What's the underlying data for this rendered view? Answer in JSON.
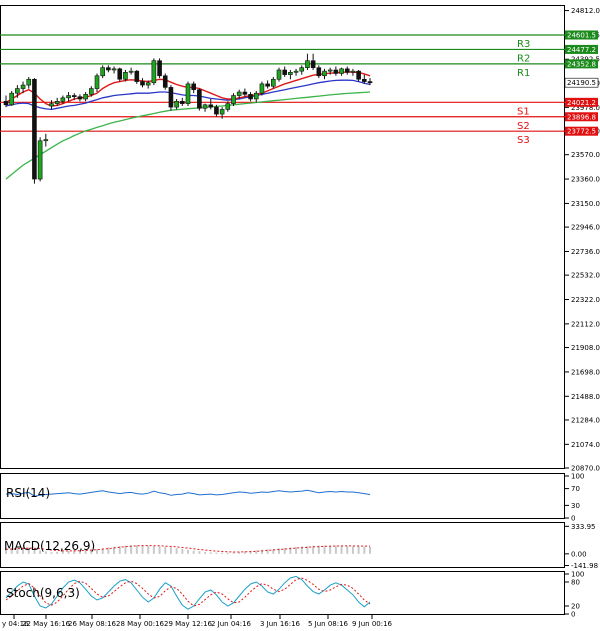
{
  "chart_data": [
    {
      "type": "candlestick",
      "title": "",
      "ylim": [
        20870,
        24860
      ],
      "y_ticks": [
        "24812.0",
        "24602.5",
        "24392.5",
        "24186.0",
        "23978.0",
        "23774.0",
        "23570.0",
        "23360.0",
        "23150.0",
        "22946.0",
        "22736.0",
        "22532.0",
        "22322.0",
        "22112.0",
        "21908.0",
        "21698.0",
        "21488.0",
        "21284.0",
        "21074.0",
        "20870.0"
      ],
      "x_ticks": [
        "y 04:16",
        "22 May 16:16",
        "26 May 08:16",
        "28 May 00:16",
        "29 May 12:16",
        "2 Jun 04:16",
        "3 Jun 16:16",
        "5 Jun 08:16",
        "9 Jun 00:16"
      ],
      "current_price": "24190.5",
      "levels": [
        {
          "name": "R3",
          "value": 24601.5,
          "label": "24601.5",
          "color": "#1a8a1a"
        },
        {
          "name": "R2",
          "value": 24477.2,
          "label": "24477.2",
          "color": "#1a8a1a"
        },
        {
          "name": "R1",
          "value": 24352.8,
          "label": "24352.8",
          "color": "#1a8a1a"
        },
        {
          "name": "S1",
          "value": 24021.2,
          "label": "24021.2",
          "color": "#e01010"
        },
        {
          "name": "S2",
          "value": 23896.8,
          "label": "23896.8",
          "color": "#e01010"
        },
        {
          "name": "S3",
          "value": 23772.5,
          "label": "23772.5",
          "color": "#e01010"
        }
      ],
      "candles": [
        [
          24030,
          24080,
          23980,
          24000
        ],
        [
          24000,
          24120,
          23990,
          24100
        ],
        [
          24100,
          24170,
          24060,
          24140
        ],
        [
          24140,
          24200,
          24100,
          24170
        ],
        [
          24170,
          24240,
          24140,
          24220
        ],
        [
          24220,
          24230,
          23320,
          23360
        ],
        [
          23360,
          23720,
          23340,
          23690
        ],
        [
          23690,
          23750,
          23640,
          23700
        ],
        [
          23990,
          24040,
          23960,
          24010
        ],
        [
          24010,
          24060,
          23990,
          24030
        ],
        [
          24030,
          24080,
          24010,
          24060
        ],
        [
          24060,
          24110,
          24030,
          24080
        ],
        [
          24080,
          24100,
          24040,
          24070
        ],
        [
          24070,
          24090,
          24030,
          24050
        ],
        [
          24050,
          24110,
          24030,
          24090
        ],
        [
          24090,
          24160,
          24070,
          24140
        ],
        [
          24140,
          24270,
          24110,
          24250
        ],
        [
          24250,
          24340,
          24230,
          24320
        ],
        [
          24320,
          24340,
          24280,
          24300
        ],
        [
          24300,
          24330,
          24270,
          24310
        ],
        [
          24310,
          24320,
          24200,
          24220
        ],
        [
          24220,
          24300,
          24200,
          24280
        ],
        [
          24280,
          24320,
          24260,
          24290
        ],
        [
          24290,
          24300,
          24180,
          24200
        ],
        [
          24200,
          24230,
          24150,
          24170
        ],
        [
          24170,
          24210,
          24140,
          24190
        ],
        [
          24190,
          24400,
          24170,
          24380
        ],
        [
          24380,
          24400,
          24230,
          24250
        ],
        [
          24250,
          24270,
          24130,
          24150
        ],
        [
          24150,
          24170,
          23950,
          23980
        ],
        [
          23980,
          24050,
          23960,
          24030
        ],
        [
          24030,
          24060,
          23990,
          24010
        ],
        [
          24010,
          24200,
          23990,
          24180
        ],
        [
          24180,
          24200,
          24100,
          24130
        ],
        [
          24130,
          24140,
          23950,
          23970
        ],
        [
          23970,
          24010,
          23940,
          24000
        ],
        [
          24000,
          24050,
          23960,
          23980
        ],
        [
          23980,
          24000,
          23900,
          23920
        ],
        [
          23920,
          23980,
          23880,
          23960
        ],
        [
          23960,
          24030,
          23940,
          24010
        ],
        [
          24010,
          24100,
          23990,
          24080
        ],
        [
          24080,
          24130,
          24050,
          24110
        ],
        [
          24110,
          24140,
          24070,
          24090
        ],
        [
          24090,
          24110,
          24030,
          24050
        ],
        [
          24050,
          24120,
          24020,
          24100
        ],
        [
          24100,
          24200,
          24080,
          24180
        ],
        [
          24180,
          24210,
          24140,
          24160
        ],
        [
          24160,
          24240,
          24140,
          24220
        ],
        [
          24220,
          24320,
          24200,
          24300
        ],
        [
          24300,
          24330,
          24240,
          24260
        ],
        [
          24260,
          24300,
          24220,
          24280
        ],
        [
          24280,
          24310,
          24250,
          24290
        ],
        [
          24290,
          24340,
          24260,
          24320
        ],
        [
          24320,
          24440,
          24300,
          24380
        ],
        [
          24380,
          24440,
          24300,
          24320
        ],
        [
          24320,
          24340,
          24230,
          24250
        ],
        [
          24250,
          24310,
          24220,
          24290
        ],
        [
          24290,
          24320,
          24260,
          24300
        ],
        [
          24300,
          24330,
          24250,
          24270
        ],
        [
          24270,
          24320,
          24250,
          24310
        ],
        [
          24310,
          24330,
          24260,
          24280
        ],
        [
          24280,
          24310,
          24250,
          24290
        ],
        [
          24290,
          24300,
          24200,
          24220
        ],
        [
          24220,
          24260,
          24180,
          24200
        ],
        [
          24200,
          24230,
          24170,
          24190
        ]
      ],
      "ma_fast": [
        24020,
        24050,
        24080,
        24110,
        24130,
        24100,
        24050,
        24010,
        23990,
        23995,
        24010,
        24030,
        24050,
        24060,
        24065,
        24080,
        24100,
        24140,
        24170,
        24190,
        24200,
        24210,
        24215,
        24212,
        24205,
        24200,
        24210,
        24220,
        24215,
        24195,
        24175,
        24160,
        24150,
        24150,
        24140,
        24120,
        24100,
        24080,
        24060,
        24050,
        24050,
        24060,
        24070,
        24080,
        24085,
        24100,
        24120,
        24140,
        24160,
        24180,
        24195,
        24210,
        24225,
        24240,
        24255,
        24262,
        24268,
        24272,
        24276,
        24280,
        24282,
        24283,
        24278,
        24266,
        24250
      ],
      "ma_mid": [
        23990,
        24000,
        24010,
        24015,
        24010,
        23990,
        23975,
        23965,
        23960,
        23970,
        23980,
        23990,
        23995,
        24005,
        24015,
        24030,
        24045,
        24060,
        24070,
        24080,
        24085,
        24090,
        24095,
        24100,
        24100,
        24100,
        24105,
        24110,
        24110,
        24105,
        24095,
        24085,
        24080,
        24080,
        24075,
        24065,
        24055,
        24050,
        24045,
        24040,
        24045,
        24050,
        24060,
        24070,
        24080,
        24090,
        24100,
        24110,
        24120,
        24130,
        24140,
        24150,
        24160,
        24170,
        24180,
        24190,
        24198,
        24205,
        24210,
        24212,
        24212,
        24210,
        24200,
        24185,
        24175
      ],
      "ma_slow": [
        23360,
        23400,
        23440,
        23480,
        23510,
        23540,
        23570,
        23600,
        23630,
        23660,
        23690,
        23710,
        23735,
        23755,
        23775,
        23790,
        23805,
        23820,
        23835,
        23850,
        23860,
        23872,
        23884,
        23895,
        23905,
        23915,
        23925,
        23935,
        23945,
        23953,
        23958,
        23962,
        23966,
        23970,
        23974,
        23978,
        23982,
        23986,
        23990,
        23996,
        24000,
        24005,
        24010,
        24015,
        24020,
        24025,
        24030,
        24035,
        24040,
        24045,
        24050,
        24055,
        24060,
        24065,
        24070,
        24075,
        24080,
        24085,
        24090,
        24095,
        24098,
        24101,
        24104,
        24107,
        24110
      ]
    },
    {
      "type": "line",
      "title": "RSI(14)",
      "ylim": [
        0,
        100
      ],
      "y_ticks": [
        "100",
        "70",
        "30",
        "0"
      ],
      "values": [
        57,
        58,
        56,
        59,
        61,
        52,
        54,
        56,
        57,
        58,
        59,
        60,
        58,
        57,
        59,
        61,
        63,
        65,
        62,
        60,
        58,
        60,
        61,
        58,
        57,
        59,
        64,
        60,
        58,
        54,
        56,
        57,
        60,
        58,
        55,
        56,
        57,
        55,
        56,
        58,
        60,
        62,
        61,
        59,
        60,
        62,
        61,
        63,
        65,
        63,
        62,
        63,
        64,
        66,
        63,
        60,
        62,
        63,
        62,
        63,
        62,
        62,
        60,
        58,
        56
      ]
    },
    {
      "type": "line",
      "title": "MACD(12,26,9)",
      "y_ticks": [
        "333.95",
        "0.00",
        "-141.98"
      ],
      "ylim": [
        -160,
        350
      ],
      "histogram": [
        60,
        65,
        70,
        75,
        80,
        60,
        40,
        30,
        20,
        25,
        30,
        35,
        40,
        42,
        45,
        50,
        58,
        68,
        78,
        86,
        92,
        98,
        104,
        106,
        104,
        100,
        96,
        92,
        86,
        78,
        68,
        58,
        48,
        40,
        32,
        24,
        18,
        14,
        12,
        14,
        18,
        24,
        30,
        36,
        42,
        48,
        54,
        60,
        66,
        72,
        78,
        84,
        90,
        94,
        98,
        100,
        100,
        100,
        99,
        97,
        95,
        93,
        91,
        89,
        87
      ],
      "signal": [
        55,
        58,
        62,
        66,
        70,
        68,
        62,
        54,
        46,
        40,
        36,
        35,
        36,
        38,
        41,
        45,
        50,
        57,
        64,
        72,
        80,
        87,
        93,
        98,
        100,
        100,
        99,
        97,
        94,
        90,
        84,
        77,
        69,
        61,
        53,
        46,
        39,
        33,
        28,
        24,
        22,
        22,
        24,
        27,
        31,
        36,
        41,
        46,
        52,
        57,
        63,
        69,
        74,
        79,
        84,
        88,
        91,
        93,
        95,
        96,
        96,
        96,
        95,
        94,
        93
      ]
    },
    {
      "type": "line",
      "title": "Stoch(9,6,3)",
      "ylim": [
        0,
        100
      ],
      "y_ticks": [
        "100",
        "80",
        "20",
        "0"
      ],
      "main": [
        40,
        55,
        70,
        80,
        75,
        45,
        20,
        15,
        25,
        45,
        65,
        80,
        85,
        78,
        62,
        45,
        35,
        40,
        55,
        70,
        82,
        86,
        78,
        60,
        42,
        30,
        40,
        62,
        78,
        70,
        45,
        22,
        12,
        20,
        38,
        55,
        60,
        48,
        30,
        20,
        28,
        45,
        62,
        75,
        80,
        70,
        55,
        50,
        62,
        78,
        90,
        94,
        86,
        70,
        56,
        50,
        60,
        72,
        78,
        72,
        60,
        48,
        30,
        18,
        30
      ],
      "signal": [
        35,
        45,
        58,
        70,
        76,
        65,
        45,
        28,
        22,
        30,
        45,
        62,
        76,
        82,
        77,
        64,
        50,
        42,
        45,
        56,
        68,
        78,
        82,
        76,
        64,
        50,
        40,
        44,
        58,
        68,
        64,
        50,
        32,
        20,
        24,
        36,
        48,
        55,
        50,
        38,
        28,
        30,
        42,
        56,
        68,
        76,
        72,
        62,
        56,
        62,
        74,
        86,
        90,
        84,
        74,
        62,
        56,
        60,
        68,
        74,
        72,
        64,
        50,
        35,
        25
      ]
    }
  ]
}
